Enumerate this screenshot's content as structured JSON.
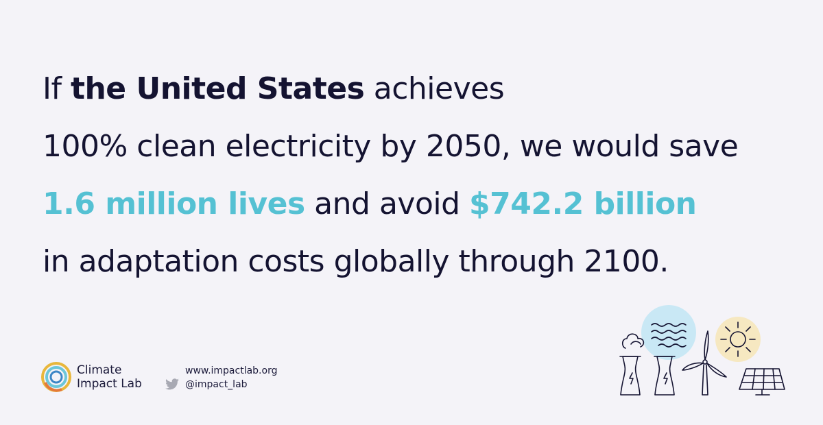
{
  "headline": {
    "line1": {
      "pre": "If ",
      "bold": "the United States",
      "post": " achieves"
    },
    "line2": "100% clean electricity by 2050, we would save",
    "line3": {
      "accent1": "1.6 million lives",
      "mid": " and avoid ",
      "accent2": "$742.2 billion"
    },
    "line4": "in adaptation costs globally through 2100."
  },
  "footer": {
    "logo_line1": "Climate",
    "logo_line2": "Impact Lab",
    "website": "www.impactlab.org",
    "twitter": "@impact_lab"
  },
  "colors": {
    "background": "#f4f3f8",
    "text": "#141331",
    "accent": "#55c1d3",
    "sky_circle": "#c9e8f5",
    "sun_circle": "#f6e8c1"
  },
  "icons": [
    "climate-impact-lab-logo-icon",
    "twitter-icon",
    "power-plant-icon",
    "wind-turbine-icon",
    "sun-icon",
    "solar-panel-icon"
  ]
}
